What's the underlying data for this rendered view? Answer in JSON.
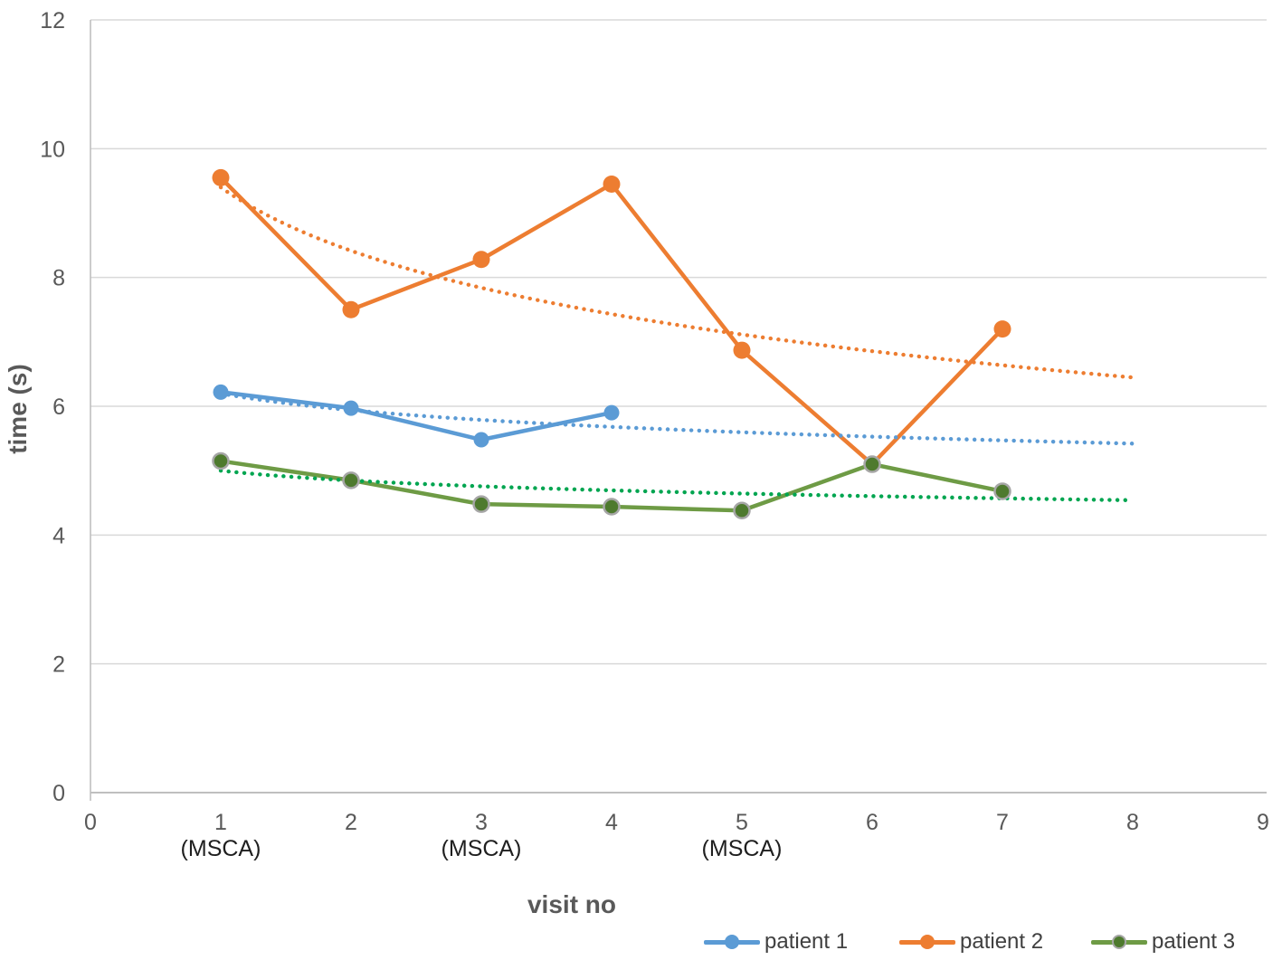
{
  "page": {
    "background": "#FFFFFF"
  },
  "chart_data": {
    "type": "line",
    "title": "",
    "xlabel": "visit no",
    "ylabel": "time (s)",
    "xlim": [
      0,
      9
    ],
    "ylim": [
      0,
      12
    ],
    "xticks": [
      0,
      1,
      2,
      3,
      4,
      5,
      6,
      7,
      8,
      9
    ],
    "yticks": [
      0,
      2,
      4,
      6,
      8,
      10,
      12
    ],
    "x_sublabels": [
      {
        "x": 1,
        "text": "(MSCA)"
      },
      {
        "x": 3,
        "text": "(MSCA)"
      },
      {
        "x": 5,
        "text": "(MSCA)"
      }
    ],
    "grid": "horizontal-only",
    "grid_color": "#D9D9D9",
    "axis_color": "#BFBFBF",
    "tick_label_color": "#595959",
    "sublabel_color": "#1F1F1F",
    "axis_title_color": "#595959",
    "legend_text_color": "#404040",
    "legend_position": "bottom-right",
    "series": [
      {
        "name": "patient 1",
        "color": "#5B9BD5",
        "x": [
          1,
          2,
          3,
          4
        ],
        "values": [
          6.22,
          5.97,
          5.48,
          5.9
        ],
        "trendline": {
          "type": "logarithmic",
          "intercept": 6.2,
          "slope": -0.375,
          "x_start": 1,
          "x_end": 8,
          "color": "#5B9BD5",
          "style": "dotted"
        }
      },
      {
        "name": "patient 2",
        "color": "#ED7D31",
        "x": [
          1,
          2,
          3,
          4,
          5,
          6,
          7
        ],
        "values": [
          9.55,
          7.5,
          8.28,
          9.45,
          6.87,
          5.1,
          7.2
        ],
        "trendline": {
          "type": "logarithmic",
          "intercept": 9.4,
          "slope": -1.42,
          "x_start": 1,
          "x_end": 8,
          "color": "#ED7D31",
          "style": "dotted"
        }
      },
      {
        "name": "patient 3",
        "color": "#6E9B45",
        "marker_fill": "#4E7A2E",
        "marker_stroke": "#A6A6A6",
        "x": [
          1,
          2,
          3,
          4,
          5,
          6,
          7
        ],
        "values": [
          5.15,
          4.85,
          4.48,
          4.44,
          4.38,
          5.1,
          4.68
        ],
        "trendline": {
          "type": "logarithmic",
          "intercept": 5.0,
          "slope": -0.221,
          "x_start": 1,
          "x_end": 8,
          "color": "#00A550",
          "style": "dotted"
        }
      }
    ]
  }
}
